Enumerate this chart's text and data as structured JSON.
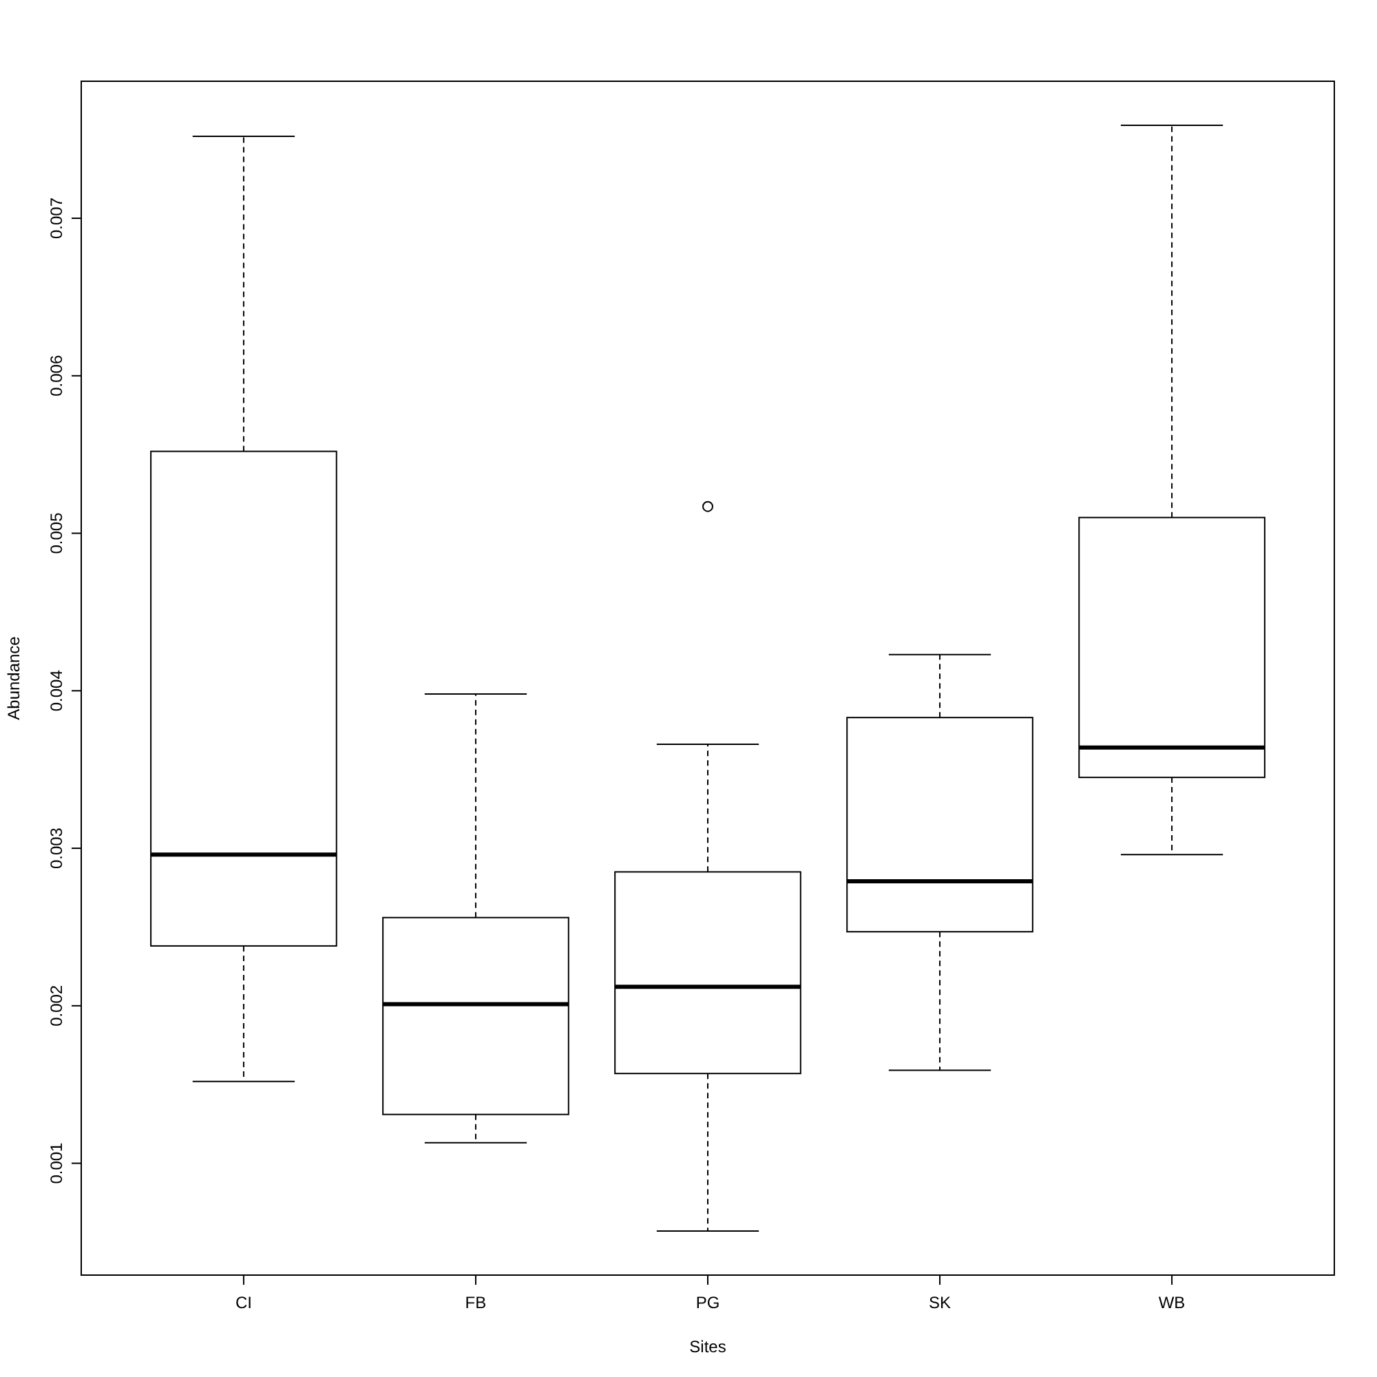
{
  "chart_data": {
    "type": "box",
    "xlabel": "Sites",
    "ylabel": "Abundance",
    "categories": [
      "CI",
      "FB",
      "PG",
      "SK",
      "WB"
    ],
    "boxes": [
      {
        "low": 0.00152,
        "q1": 0.00238,
        "median": 0.00296,
        "q3": 0.00552,
        "high": 0.00752
      },
      {
        "low": 0.00113,
        "q1": 0.00131,
        "median": 0.00201,
        "q3": 0.00256,
        "high": 0.00398
      },
      {
        "low": 0.00057,
        "q1": 0.00157,
        "median": 0.00212,
        "q3": 0.00285,
        "high": 0.00366,
        "outliers": [
          0.00517
        ]
      },
      {
        "low": 0.00159,
        "q1": 0.00247,
        "median": 0.00279,
        "q3": 0.00383,
        "high": 0.00423
      },
      {
        "low": 0.00296,
        "q1": 0.00345,
        "median": 0.00364,
        "q3": 0.0051,
        "high": 0.00759
      }
    ],
    "ylim": [
      0.00029,
      0.00787
    ],
    "yticks": [
      0.001,
      0.002,
      0.003,
      0.004,
      0.005,
      0.006,
      0.007
    ],
    "grid": false
  }
}
